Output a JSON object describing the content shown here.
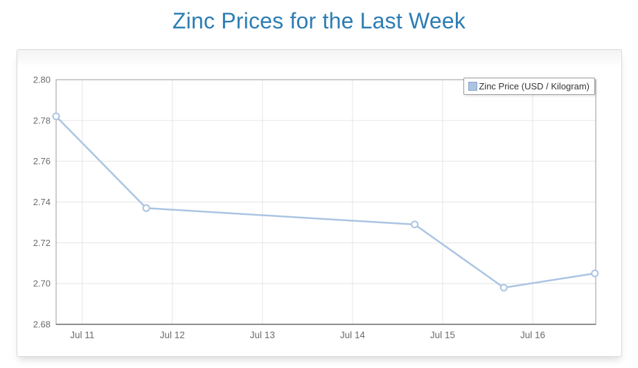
{
  "page": {
    "title": "Zinc Prices for the Last Week"
  },
  "colors": {
    "title": "#2d7db3",
    "series": "#aac4e2",
    "marker_fill": "#ffffff",
    "grid": "#e5e5e5",
    "plot_border": "#9a9a9a",
    "axis_bottom": "#8d8d8d",
    "axis_text": "#6b6b6b",
    "legend_text": "#333333",
    "card_border": "#d8d8d8"
  },
  "legend": {
    "label": "Zinc Price (USD / Kilogram)"
  },
  "chart_data": {
    "type": "line",
    "title": "Zinc Prices for the Last Week",
    "xlabel": "",
    "ylabel": "",
    "grid": true,
    "legend_position": "top-right-inside",
    "xlim_day_offset": [
      -0.29,
      5.7
    ],
    "ylim": [
      2.68,
      2.8
    ],
    "y_ticks": [
      "2.68",
      "2.70",
      "2.72",
      "2.74",
      "2.76",
      "2.78",
      "2.80"
    ],
    "x_ticks": [
      {
        "day_offset": 0,
        "label": "Jul 11"
      },
      {
        "day_offset": 1,
        "label": "Jul 12"
      },
      {
        "day_offset": 2,
        "label": "Jul 13"
      },
      {
        "day_offset": 3,
        "label": "Jul 14"
      },
      {
        "day_offset": 4,
        "label": "Jul 15"
      },
      {
        "day_offset": 5,
        "label": "Jul 16"
      }
    ],
    "series": [
      {
        "name": "Zinc Price (USD / Kilogram)",
        "color": "#aac4e2",
        "marker": "open-circle",
        "points": [
          {
            "date": "Jul 10",
            "day_offset": -0.29,
            "value": 2.782
          },
          {
            "date": "Jul 11",
            "day_offset": 0.71,
            "value": 2.737
          },
          {
            "date": "Jul 14",
            "day_offset": 3.69,
            "value": 2.729
          },
          {
            "date": "Jul 15",
            "day_offset": 4.68,
            "value": 2.698
          },
          {
            "date": "Jul 16",
            "day_offset": 5.69,
            "value": 2.705
          }
        ]
      }
    ]
  }
}
